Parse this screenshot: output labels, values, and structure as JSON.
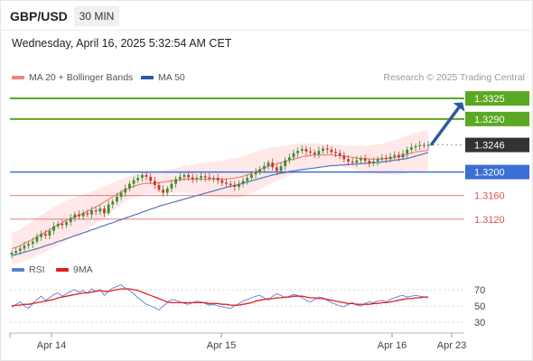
{
  "header": {
    "symbol": "GBP/USD",
    "timeframe": "30 MIN",
    "datetime": "Wednesday, April 16, 2025 5:32:54 AM CET"
  },
  "legend": {
    "ma20_label": "MA 20 + Bollinger Bands",
    "ma50_label": "MA 50",
    "credit": "Research © 2025 Trading Central"
  },
  "rsi_legend": {
    "rsi_label": "RSI",
    "ma9_label": "9MA"
  },
  "colors": {
    "resistance": "#5aa823",
    "pivot": "#3a6fd6",
    "support": "#d9534f",
    "last_price_bg": "#333333",
    "arrow": "#2c5aa0",
    "candle_up": "#3c8c2c",
    "candle_down": "#c0392b",
    "ma20": "#f08080",
    "ma50": "#5876b8",
    "band_fill": "#fde0e0",
    "rsi_line": "#5b7fd6",
    "rsi_ma": "#e02020"
  },
  "chart_data": [
    {
      "type": "candlestick",
      "title": "GBP/USD",
      "x_ticks": [
        "Apr 14",
        "Apr 15",
        "Apr 16",
        "Apr 23"
      ],
      "ylim": [
        1.306,
        1.3345
      ],
      "levels": [
        {
          "value": "1.3325",
          "kind": "resistance"
        },
        {
          "value": "1.3290",
          "kind": "resistance"
        },
        {
          "value": "1.3246",
          "kind": "last"
        },
        {
          "value": "1.3200",
          "kind": "pivot"
        },
        {
          "value": "1.3160",
          "kind": "support"
        },
        {
          "value": "1.3120",
          "kind": "support"
        }
      ],
      "close_series": [
        1.3063,
        1.3066,
        1.307,
        1.3075,
        1.3078,
        1.3082,
        1.309,
        1.3095,
        1.3092,
        1.31,
        1.3108,
        1.3112,
        1.311,
        1.3115,
        1.3122,
        1.3128,
        1.3125,
        1.313,
        1.3128,
        1.3135,
        1.3133,
        1.3138,
        1.313,
        1.3145,
        1.315,
        1.3158,
        1.3165,
        1.3172,
        1.318,
        1.3186,
        1.319,
        1.3195,
        1.3192,
        1.3185,
        1.3178,
        1.317,
        1.3165,
        1.3172,
        1.318,
        1.3188,
        1.3192,
        1.3195,
        1.3191,
        1.3188,
        1.319,
        1.3193,
        1.3191,
        1.3189,
        1.319,
        1.3186,
        1.3182,
        1.318,
        1.3178,
        1.3175,
        1.318,
        1.3185,
        1.319,
        1.3196,
        1.32,
        1.3205,
        1.321,
        1.3216,
        1.3208,
        1.3202,
        1.321,
        1.322,
        1.3225,
        1.3232,
        1.3236,
        1.3239,
        1.3235,
        1.3233,
        1.323,
        1.3236,
        1.324,
        1.3238,
        1.3234,
        1.3232,
        1.3228,
        1.3222,
        1.3218,
        1.3216,
        1.322,
        1.3223,
        1.3219,
        1.3215,
        1.3218,
        1.3222,
        1.3224,
        1.3222,
        1.3226,
        1.3229,
        1.3225,
        1.3231,
        1.3238,
        1.3242,
        1.3244,
        1.3246,
        1.3245,
        1.3246
      ],
      "ma20_series": [
        1.307,
        1.3072,
        1.3075,
        1.3079,
        1.3082,
        1.3086,
        1.309,
        1.3094,
        1.3098,
        1.3102,
        1.3106,
        1.311,
        1.3114,
        1.3118,
        1.3121,
        1.3124,
        1.3127,
        1.313,
        1.3133,
        1.3137,
        1.3141,
        1.3145,
        1.3149,
        1.3154,
        1.3158,
        1.3162,
        1.3166,
        1.317,
        1.3173,
        1.3176,
        1.3178,
        1.318,
        1.3181,
        1.3181,
        1.3181,
        1.3182,
        1.3183,
        1.3184,
        1.3185,
        1.3186,
        1.3187,
        1.3188,
        1.3188,
        1.3188,
        1.3188,
        1.3188,
        1.3188,
        1.3188,
        1.3188,
        1.3188,
        1.3188,
        1.3188,
        1.3189,
        1.319,
        1.3191,
        1.3193,
        1.3195,
        1.3198,
        1.3201,
        1.3204,
        1.3207,
        1.321,
        1.3212,
        1.3214,
        1.3216,
        1.3218,
        1.322,
        1.3222,
        1.3224,
        1.3226,
        1.3227,
        1.3228,
        1.3229,
        1.3229,
        1.3229,
        1.3229,
        1.3229,
        1.3228,
        1.3228,
        1.3227,
        1.3226,
        1.3225,
        1.3224,
        1.3223,
        1.3223,
        1.3222,
        1.3222,
        1.3222,
        1.3222,
        1.3223,
        1.3224,
        1.3225,
        1.3226,
        1.3228,
        1.323,
        1.3232,
        1.3234,
        1.3235,
        1.3236,
        1.3237
      ],
      "ma50_series": [
        1.3058,
        1.306,
        1.3062,
        1.3064,
        1.3066,
        1.3068,
        1.307,
        1.3072,
        1.3075,
        1.3077,
        1.3079,
        1.3082,
        1.3084,
        1.3087,
        1.3089,
        1.3092,
        1.3094,
        1.3097,
        1.3099,
        1.3102,
        1.3104,
        1.3107,
        1.3109,
        1.3112,
        1.3114,
        1.3117,
        1.3119,
        1.3122,
        1.3124,
        1.3127,
        1.3129,
        1.3132,
        1.3134,
        1.3137,
        1.3139,
        1.3142,
        1.3144,
        1.3146,
        1.3148,
        1.315,
        1.3152,
        1.3154,
        1.3156,
        1.3158,
        1.316,
        1.3162,
        1.3164,
        1.3166,
        1.3168,
        1.317,
        1.3172,
        1.3174,
        1.3176,
        1.3177,
        1.3179,
        1.3181,
        1.3183,
        1.3185,
        1.3187,
        1.3189,
        1.3191,
        1.3193,
        1.3195,
        1.3196,
        1.3198,
        1.3199,
        1.3201,
        1.3202,
        1.3203,
        1.3204,
        1.3205,
        1.3206,
        1.3207,
        1.3208,
        1.3209,
        1.321,
        1.3211,
        1.3211,
        1.3212,
        1.3212,
        1.3213,
        1.3213,
        1.3214,
        1.3214,
        1.3215,
        1.3215,
        1.3216,
        1.3216,
        1.3217,
        1.3218,
        1.3219,
        1.322,
        1.3221,
        1.3222,
        1.3223,
        1.3225,
        1.3227,
        1.3229,
        1.3231,
        1.3233
      ]
    },
    {
      "type": "line",
      "title": "RSI",
      "yticks": [
        "70",
        "50",
        "30"
      ],
      "ylim": [
        20,
        80
      ],
      "series": [
        {
          "name": "RSI",
          "values": [
            48,
            52,
            55,
            50,
            47,
            53,
            58,
            62,
            57,
            60,
            64,
            66,
            62,
            65,
            68,
            70,
            67,
            69,
            66,
            71,
            68,
            70,
            63,
            68,
            72,
            74,
            76,
            72,
            69,
            65,
            60,
            56,
            52,
            50,
            48,
            45,
            50,
            54,
            58,
            57,
            55,
            53,
            52,
            54,
            56,
            55,
            53,
            51,
            52,
            50,
            49,
            48,
            47,
            50,
            53,
            56,
            58,
            60,
            62,
            63,
            60,
            57,
            62,
            65,
            63,
            60,
            62,
            64,
            63,
            60,
            57,
            55,
            58,
            61,
            60,
            57,
            54,
            52,
            50,
            49,
            52,
            54,
            51,
            50,
            53,
            55,
            54,
            56,
            57,
            55,
            58,
            60,
            62,
            63,
            61,
            62,
            63,
            62,
            61,
            60
          ]
        },
        {
          "name": "9MA",
          "values": [
            50,
            51,
            51,
            52,
            52,
            53,
            54,
            55,
            56,
            57,
            58,
            60,
            61,
            62,
            63,
            64,
            65,
            66,
            66,
            67,
            68,
            69,
            68,
            68,
            69,
            70,
            71,
            71,
            71,
            70,
            69,
            67,
            65,
            63,
            61,
            59,
            57,
            55,
            54,
            54,
            54,
            54,
            54,
            54,
            54,
            54,
            54,
            53,
            53,
            53,
            52,
            52,
            51,
            51,
            51,
            52,
            53,
            54,
            56,
            57,
            58,
            59,
            59,
            60,
            60,
            61,
            61,
            62,
            62,
            62,
            61,
            60,
            60,
            59,
            59,
            58,
            57,
            56,
            55,
            54,
            53,
            53,
            52,
            52,
            52,
            52,
            53,
            53,
            54,
            54,
            55,
            56,
            57,
            58,
            59,
            59,
            60,
            60,
            61,
            61
          ]
        }
      ]
    }
  ]
}
